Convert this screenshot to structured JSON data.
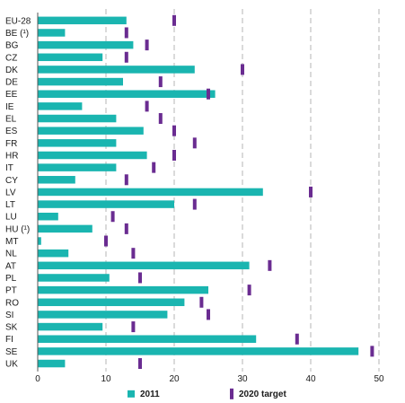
{
  "chart_data": {
    "type": "bar",
    "orientation": "horizontal",
    "categories": [
      "EU-28",
      "BE (¹)",
      "BG",
      "CZ",
      "DK",
      "DE",
      "EE",
      "IE",
      "EL",
      "ES",
      "FR",
      "HR",
      "IT",
      "CY",
      "LV",
      "LT",
      "LU",
      "HU (¹)",
      "MT",
      "NL",
      "AT",
      "PL",
      "PT",
      "RO",
      "SI",
      "SK",
      "FI",
      "SE",
      "UK"
    ],
    "series": [
      {
        "name": "2011",
        "type": "bar",
        "color": "#1ab5b0",
        "values": [
          13,
          4,
          14,
          9.5,
          23,
          12.5,
          26,
          6.5,
          11.5,
          15.5,
          11.5,
          16,
          11.5,
          5.5,
          33,
          20,
          3,
          8,
          0.5,
          4.5,
          31,
          10.5,
          25,
          21.5,
          19,
          9.5,
          32,
          47,
          4
        ]
      },
      {
        "name": "2020 target",
        "type": "marker",
        "color": "#6a2c91",
        "values": [
          20,
          13,
          16,
          13,
          30,
          18,
          25,
          16,
          18,
          20,
          23,
          20,
          17,
          13,
          40,
          23,
          11,
          13,
          10,
          14,
          34,
          15,
          31,
          24,
          25,
          14,
          38,
          49,
          15
        ]
      }
    ],
    "xlim": [
      0,
      50
    ],
    "xticks": [
      "0",
      "10",
      "20",
      "30",
      "40",
      "50"
    ],
    "grid": "vertical dashed",
    "legend_position": "bottom"
  }
}
